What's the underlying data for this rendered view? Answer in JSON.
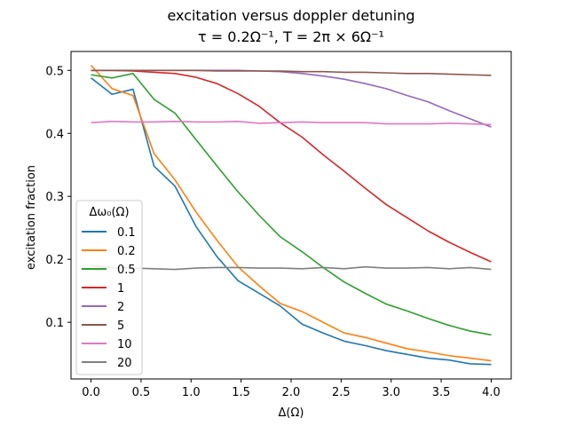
{
  "chart_data": {
    "type": "line",
    "title": "excitation versus doppler detuning",
    "subtitle": "τ = 0.2Ω⁻¹, T = 2π × 6Ω⁻¹",
    "xlabel": "Δ(Ω)",
    "ylabel": "excitation fraction",
    "xlim": [
      -0.2,
      4.2
    ],
    "ylim": [
      0.01,
      0.53
    ],
    "xticks": [
      0.0,
      0.5,
      1.0,
      1.5,
      2.0,
      2.5,
      3.0,
      3.5,
      4.0
    ],
    "xtick_labels": [
      "0.0",
      "0.5",
      "1.0",
      "1.5",
      "2.0",
      "2.5",
      "3.0",
      "3.5",
      "4.0"
    ],
    "yticks": [
      0.1,
      0.2,
      0.3,
      0.4,
      0.5
    ],
    "ytick_labels": [
      "0.1",
      "0.2",
      "0.3",
      "0.4",
      "0.5"
    ],
    "grid": false,
    "legend": {
      "title": "Δω₀(Ω)",
      "placement": "lower-left"
    },
    "x": [
      0.0,
      0.21,
      0.42,
      0.63,
      0.84,
      1.05,
      1.26,
      1.47,
      1.68,
      1.89,
      2.11,
      2.32,
      2.53,
      2.74,
      2.95,
      3.16,
      3.37,
      3.58,
      3.79,
      4.0
    ],
    "series": [
      {
        "name": "0.1",
        "color": "#1f77b4",
        "values": [
          0.488,
          0.462,
          0.47,
          0.348,
          0.316,
          0.252,
          0.204,
          0.166,
          0.146,
          0.126,
          0.097,
          0.083,
          0.07,
          0.063,
          0.055,
          0.049,
          0.043,
          0.04,
          0.034,
          0.033
        ]
      },
      {
        "name": "0.2",
        "color": "#ff7f0e",
        "values": [
          0.508,
          0.471,
          0.46,
          0.368,
          0.326,
          0.275,
          0.23,
          0.188,
          0.158,
          0.13,
          0.117,
          0.1,
          0.083,
          0.076,
          0.067,
          0.058,
          0.053,
          0.047,
          0.043,
          0.039
        ]
      },
      {
        "name": "0.5",
        "color": "#2ca02c",
        "values": [
          0.493,
          0.488,
          0.495,
          0.454,
          0.432,
          0.39,
          0.348,
          0.307,
          0.27,
          0.236,
          0.212,
          0.187,
          0.164,
          0.146,
          0.129,
          0.118,
          0.106,
          0.095,
          0.086,
          0.08
        ]
      },
      {
        "name": "1",
        "color": "#d62728",
        "values": [
          0.5,
          0.5,
          0.499,
          0.497,
          0.495,
          0.489,
          0.479,
          0.463,
          0.443,
          0.417,
          0.394,
          0.366,
          0.34,
          0.313,
          0.287,
          0.266,
          0.245,
          0.227,
          0.211,
          0.196
        ]
      },
      {
        "name": "2",
        "color": "#9467bd",
        "values": [
          0.5,
          0.5,
          0.5,
          0.5,
          0.5,
          0.5,
          0.5,
          0.5,
          0.499,
          0.498,
          0.495,
          0.491,
          0.486,
          0.479,
          0.471,
          0.46,
          0.45,
          0.436,
          0.423,
          0.41
        ]
      },
      {
        "name": "5",
        "color": "#8c564b",
        "values": [
          0.5,
          0.5,
          0.5,
          0.5,
          0.5,
          0.5,
          0.499,
          0.499,
          0.499,
          0.499,
          0.498,
          0.498,
          0.497,
          0.497,
          0.496,
          0.495,
          0.495,
          0.494,
          0.493,
          0.492
        ]
      },
      {
        "name": "10",
        "color": "#e377c2",
        "values": [
          0.417,
          0.419,
          0.418,
          0.418,
          0.419,
          0.418,
          0.418,
          0.419,
          0.416,
          0.417,
          0.418,
          0.417,
          0.417,
          0.417,
          0.415,
          0.415,
          0.415,
          0.416,
          0.415,
          0.414
        ]
      },
      {
        "name": "20",
        "color": "#7f7f7f",
        "values": [
          0.19,
          0.187,
          0.186,
          0.185,
          0.184,
          0.186,
          0.187,
          0.187,
          0.186,
          0.186,
          0.185,
          0.187,
          0.185,
          0.188,
          0.186,
          0.186,
          0.187,
          0.185,
          0.187,
          0.184
        ]
      }
    ]
  }
}
